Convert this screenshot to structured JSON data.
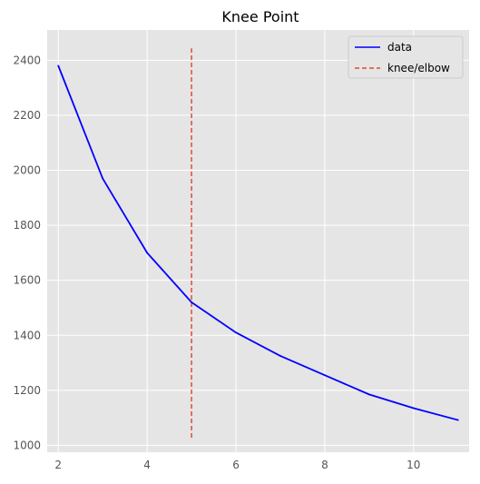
{
  "chart_data": {
    "type": "line",
    "title": "Knee Point",
    "xlabel": "",
    "ylabel": "",
    "xlim": [
      1.75,
      11.25
    ],
    "ylim": [
      975,
      2510
    ],
    "xticks": [
      2,
      4,
      6,
      8,
      10
    ],
    "yticks": [
      1000,
      1200,
      1400,
      1600,
      1800,
      2000,
      2200,
      2400
    ],
    "grid": true,
    "legend_position": "upper-right",
    "series": [
      {
        "name": "data",
        "color": "#0000ff",
        "style": "solid",
        "x": [
          2,
          3,
          4,
          5,
          6,
          7,
          8,
          9,
          10,
          11
        ],
        "y": [
          2380,
          1970,
          1700,
          1520,
          1410,
          1325,
          1255,
          1185,
          1135,
          1092
        ]
      }
    ],
    "knee": {
      "name": "knee/elbow",
      "color": "#e24a33",
      "style": "dashed",
      "x": 5,
      "y_range": [
        1028,
        2443
      ]
    },
    "colors": {
      "plot_background": "#e5e5e5",
      "grid": "#ffffff",
      "tick_label": "#555555",
      "title": "#000000"
    }
  }
}
